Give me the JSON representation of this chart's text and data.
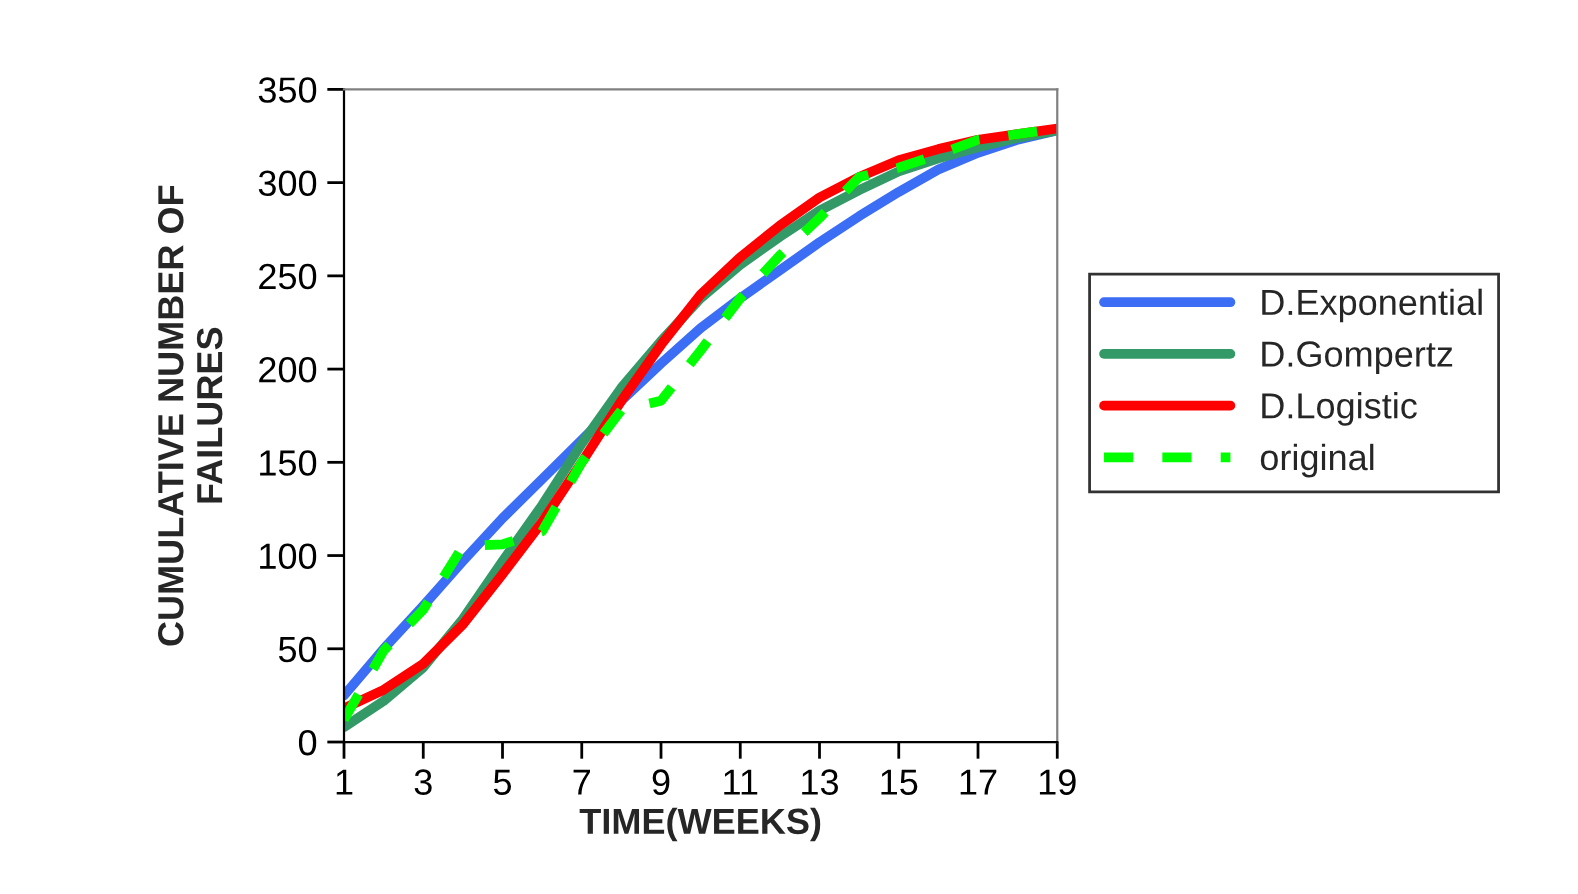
{
  "chart_data": {
    "type": "line",
    "xlabel": "TIME(WEEKS)",
    "ylabel": "CUMULATIVE NUMBER OF\nFAILURES",
    "x": [
      1,
      2,
      3,
      4,
      5,
      6,
      7,
      8,
      9,
      10,
      11,
      12,
      13,
      14,
      15,
      16,
      17,
      18,
      19
    ],
    "xlim": [
      1,
      19
    ],
    "xticks": [
      1,
      3,
      5,
      7,
      9,
      11,
      13,
      15,
      17,
      19
    ],
    "ylim": [
      0,
      350
    ],
    "yticks": [
      0,
      50,
      100,
      150,
      200,
      250,
      300,
      350
    ],
    "grid": false,
    "legend": "right",
    "marker": "none",
    "series": [
      {
        "name": "D.Exponential",
        "color": "#3b6ef5",
        "line_style": "solid",
        "values": [
          25,
          50,
          73,
          97,
          120,
          141,
          162,
          183,
          203,
          222,
          238,
          253,
          268,
          282,
          295,
          307,
          316,
          323,
          328
        ]
      },
      {
        "name": "D.Gompertz",
        "color": "#339966",
        "line_style": "solid",
        "values": [
          8,
          22,
          40,
          66,
          97,
          127,
          160,
          190,
          215,
          238,
          256,
          271,
          285,
          296,
          306,
          313,
          319,
          324,
          328
        ]
      },
      {
        "name": "D.Logistic",
        "color": "#ff0000",
        "line_style": "solid",
        "values": [
          18,
          28,
          42,
          63,
          90,
          118,
          150,
          183,
          213,
          240,
          260,
          277,
          292,
          303,
          312,
          318,
          323,
          326,
          329
        ]
      },
      {
        "name": "original",
        "color": "#00ff00",
        "line_style": "dashed",
        "values": [
          12,
          49,
          71,
          105,
          106,
          113,
          150,
          178,
          183,
          210,
          238,
          261,
          281,
          303,
          308,
          315,
          323,
          326,
          329
        ]
      }
    ]
  }
}
